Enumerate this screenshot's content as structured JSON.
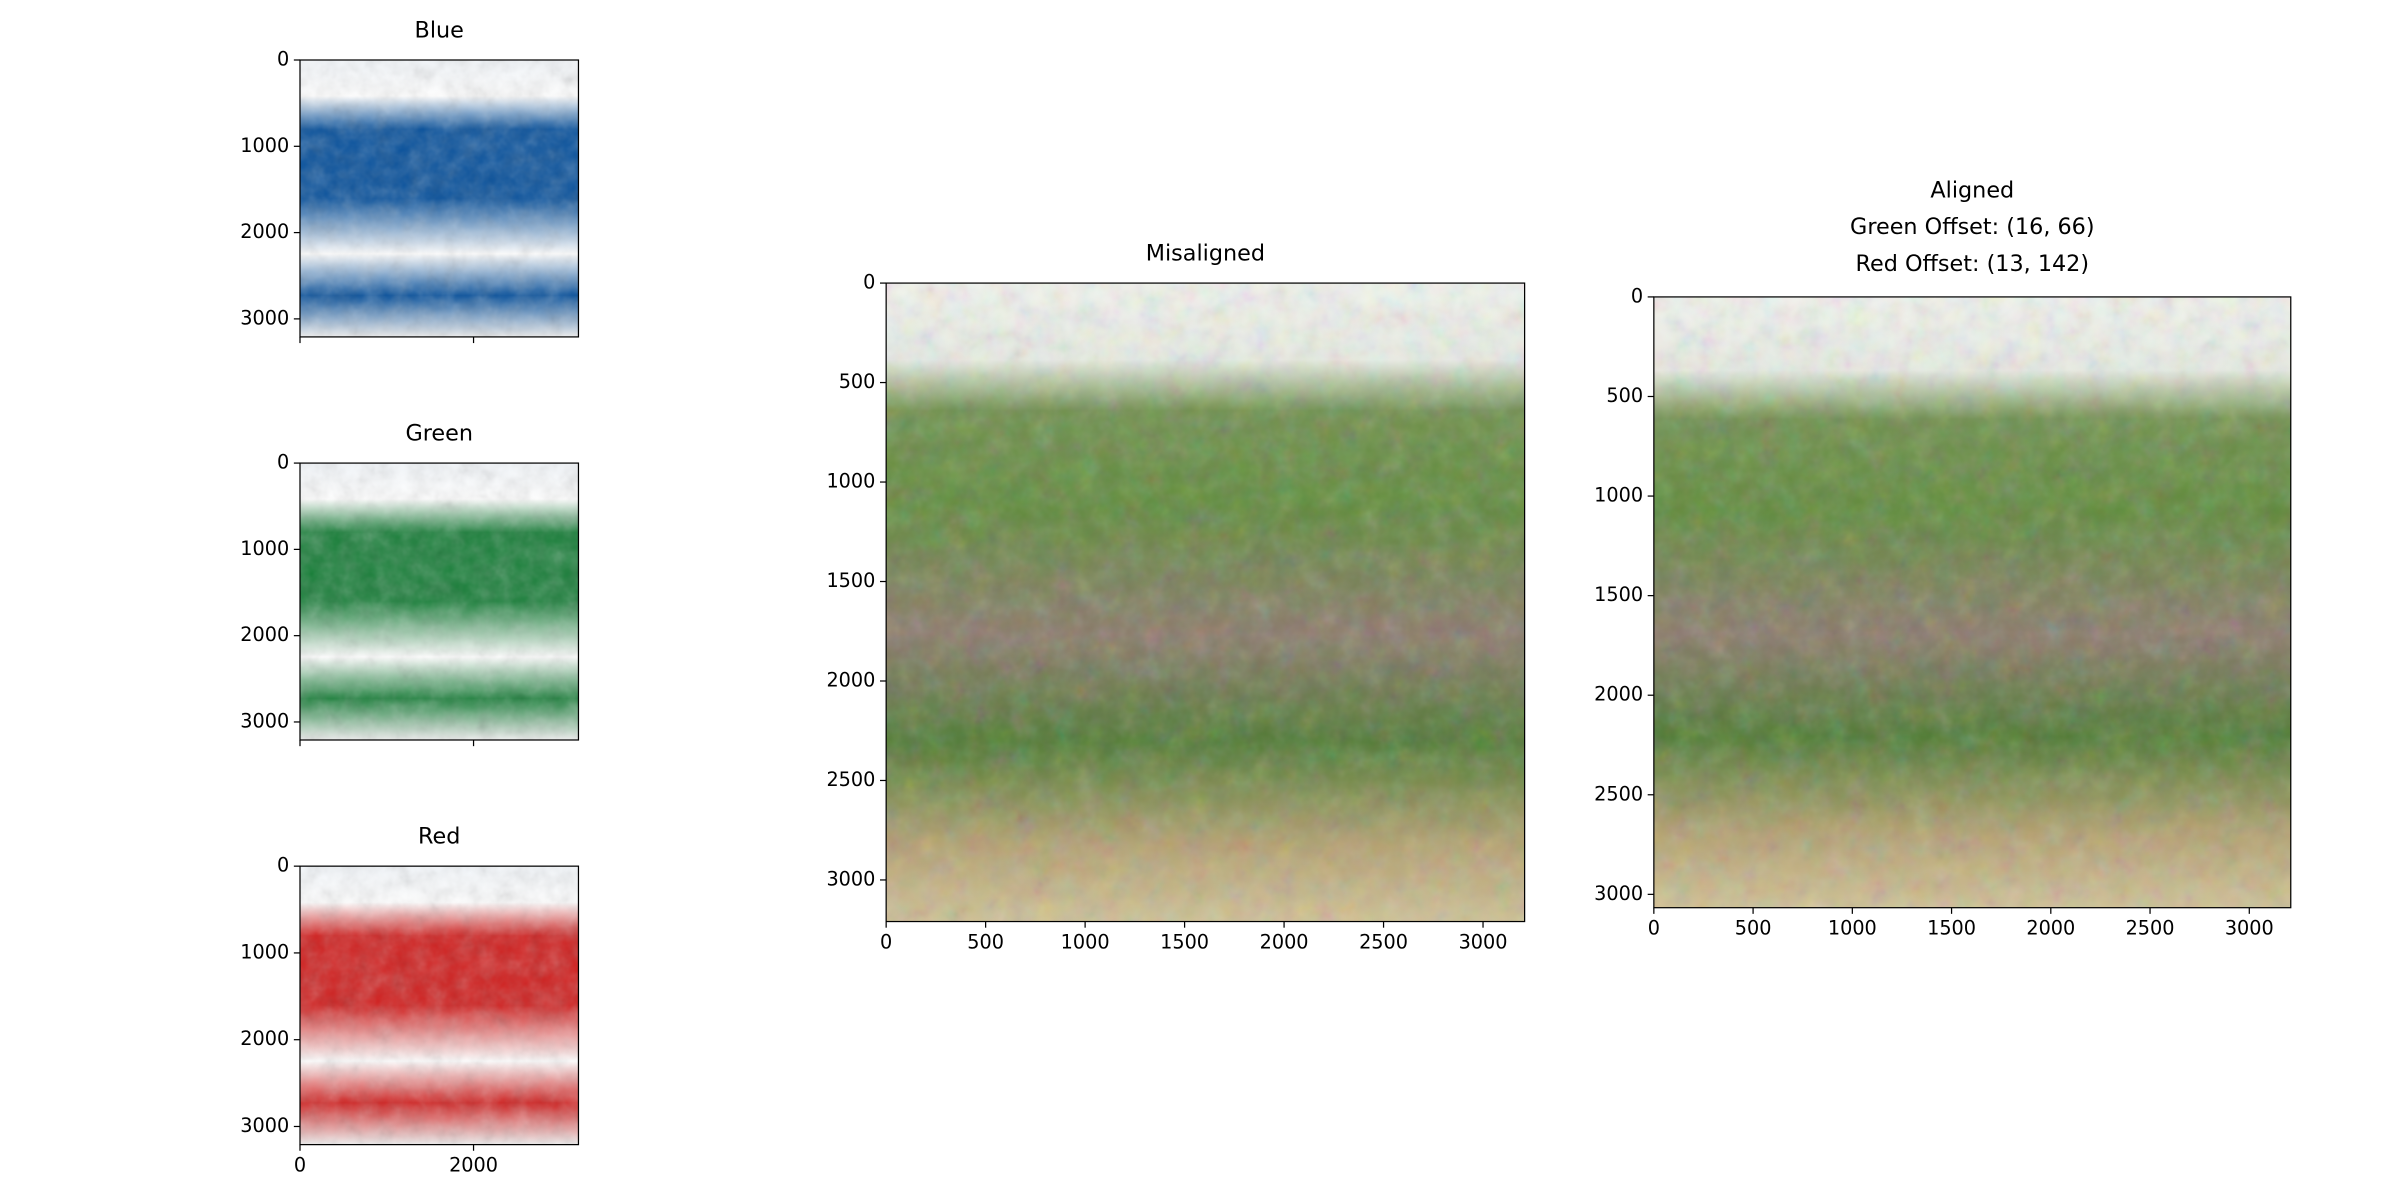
{
  "chart_data": [
    {
      "type": "image",
      "title": "Blue",
      "color": "#08519c",
      "xlim": [
        0,
        3209
      ],
      "ylim": [
        3209,
        0
      ],
      "xticks": [
        0,
        2000
      ],
      "xtick_labels": false,
      "yticks": [
        0,
        1000,
        2000,
        3000
      ]
    },
    {
      "type": "image",
      "title": "Green",
      "color": "#1a7f3a",
      "xlim": [
        0,
        3209
      ],
      "ylim": [
        3209,
        0
      ],
      "xticks": [
        0,
        2000
      ],
      "xtick_labels": false,
      "yticks": [
        0,
        1000,
        2000,
        3000
      ]
    },
    {
      "type": "image",
      "title": "Red",
      "color": "#d0201f",
      "xlim": [
        0,
        3209
      ],
      "ylim": [
        3209,
        0
      ],
      "xticks": [
        0,
        2000
      ],
      "xtick_labels": true,
      "yticks": [
        0,
        1000,
        2000,
        3000
      ]
    },
    {
      "type": "image",
      "title": "Misaligned",
      "xlim": [
        0,
        3209
      ],
      "ylim": [
        3209,
        0
      ],
      "xticks": [
        0,
        500,
        1000,
        1500,
        2000,
        2500,
        3000
      ],
      "xtick_labels": true,
      "yticks": [
        0,
        500,
        1000,
        1500,
        2000,
        2500,
        3000
      ]
    },
    {
      "type": "image",
      "title": [
        "Aligned",
        "Green Offset: (16, 66)",
        "Red Offset: (13, 142)"
      ],
      "xlim": [
        0,
        3209
      ],
      "ylim": [
        3067,
        0
      ],
      "xticks": [
        0,
        500,
        1000,
        1500,
        2000,
        2500,
        3000
      ],
      "xtick_labels": true,
      "yticks": [
        0,
        500,
        1000,
        1500,
        2000,
        2500,
        3000
      ]
    }
  ]
}
